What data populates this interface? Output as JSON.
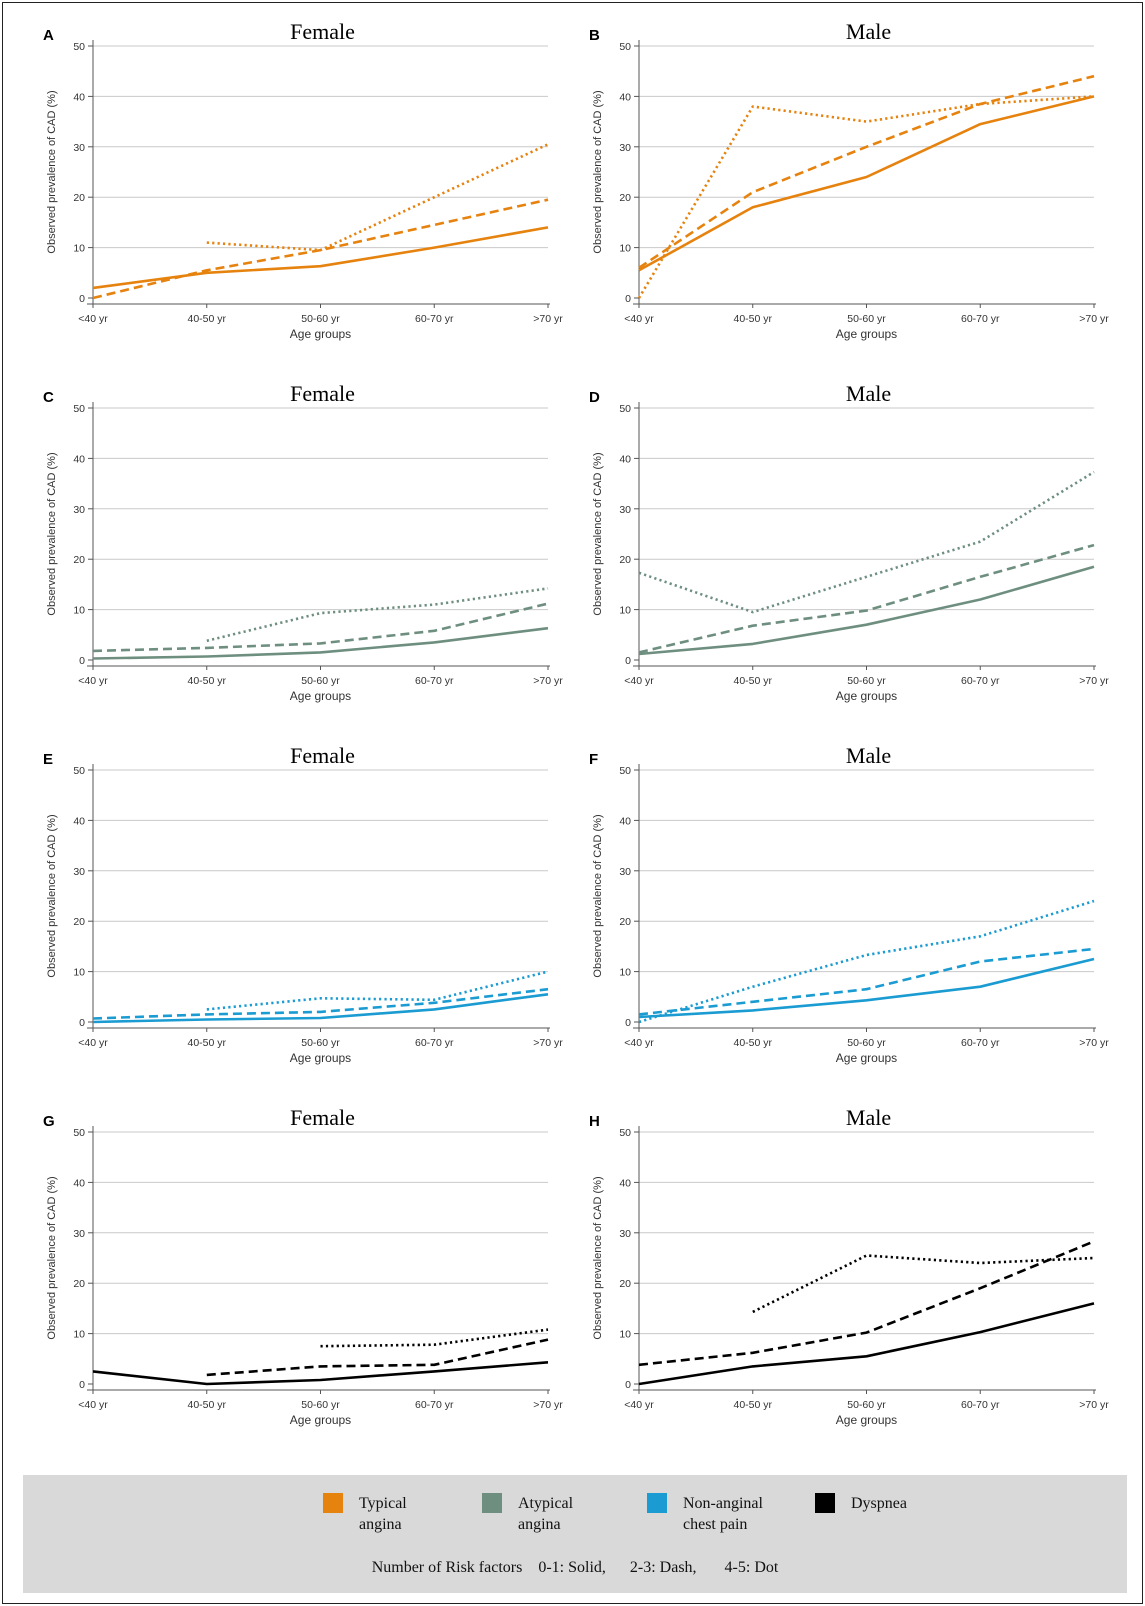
{
  "chart_data": [
    {
      "panel": "A",
      "title": "Female",
      "type": "line",
      "xlabel": "Age groups",
      "ylabel": "Observed prevalence of CAD (%)",
      "categories": [
        "<40 yr",
        "40-50 yr",
        "50-60 yr",
        "60-70 yr",
        ">70 yr"
      ],
      "yticks": [
        0,
        10,
        20,
        30,
        40,
        50
      ],
      "ylim": [
        0,
        50
      ],
      "color": "#E6820E",
      "series": [
        {
          "style": "solid",
          "values": [
            2,
            5,
            6.3,
            10,
            14
          ]
        },
        {
          "style": "dash",
          "values": [
            0,
            5.5,
            9.5,
            14.5,
            19.5
          ]
        },
        {
          "style": "dot",
          "values": [
            null,
            11,
            9.5,
            20,
            30.5
          ]
        }
      ]
    },
    {
      "panel": "B",
      "title": "Male",
      "type": "line",
      "xlabel": "Age groups",
      "ylabel": "Observed prevalence of CAD (%)",
      "categories": [
        "<40 yr",
        "40-50 yr",
        "50-60 yr",
        "60-70 yr",
        ">70 yr"
      ],
      "yticks": [
        0,
        10,
        20,
        30,
        40,
        50
      ],
      "ylim": [
        0,
        50
      ],
      "color": "#E6820E",
      "series": [
        {
          "style": "solid",
          "values": [
            5.5,
            18,
            24,
            34.5,
            40
          ]
        },
        {
          "style": "dash",
          "values": [
            6,
            21,
            30,
            38.5,
            44
          ]
        },
        {
          "style": "dot",
          "values": [
            0,
            38,
            35,
            38.5,
            40
          ]
        }
      ]
    },
    {
      "panel": "C",
      "title": "Female",
      "type": "line",
      "xlabel": "Age groups",
      "ylabel": "Observed prevalence of CAD (%)",
      "categories": [
        "<40 yr",
        "40-50 yr",
        "50-60 yr",
        "60-70 yr",
        ">70 yr"
      ],
      "yticks": [
        0,
        10,
        20,
        30,
        40,
        50
      ],
      "ylim": [
        0,
        50
      ],
      "color": "#6E8F80",
      "series": [
        {
          "style": "solid",
          "values": [
            0.3,
            0.7,
            1.5,
            3.5,
            6.3
          ]
        },
        {
          "style": "dash",
          "values": [
            1.8,
            2.4,
            3.3,
            5.8,
            11.2
          ]
        },
        {
          "style": "dot",
          "values": [
            null,
            3.8,
            9.3,
            11,
            14.2
          ]
        }
      ]
    },
    {
      "panel": "D",
      "title": "Male",
      "type": "line",
      "xlabel": "Age groups",
      "ylabel": "Observed prevalence of CAD (%)",
      "categories": [
        "<40 yr",
        "40-50 yr",
        "50-60 yr",
        "60-70 yr",
        ">70 yr"
      ],
      "yticks": [
        0,
        10,
        20,
        30,
        40,
        50
      ],
      "ylim": [
        0,
        50
      ],
      "color": "#6E8F80",
      "series": [
        {
          "style": "solid",
          "values": [
            1.2,
            3.2,
            7,
            12,
            18.5
          ]
        },
        {
          "style": "dash",
          "values": [
            1.5,
            6.8,
            9.8,
            16.5,
            22.8
          ]
        },
        {
          "style": "dot",
          "values": [
            17.3,
            9.5,
            16.5,
            23.5,
            37.3
          ]
        }
      ]
    },
    {
      "panel": "E",
      "title": "Female",
      "type": "line",
      "xlabel": "Age groups",
      "ylabel": "Observed prevalence of CAD (%)",
      "categories": [
        "<40 yr",
        "40-50 yr",
        "50-60 yr",
        "60-70 yr",
        ">70 yr"
      ],
      "yticks": [
        0,
        10,
        20,
        30,
        40,
        50
      ],
      "ylim": [
        0,
        50
      ],
      "color": "#1A9BD1",
      "series": [
        {
          "style": "solid",
          "values": [
            0,
            0.5,
            0.8,
            2.5,
            5.5
          ]
        },
        {
          "style": "dash",
          "values": [
            0.7,
            1.5,
            2,
            3.8,
            6.5
          ]
        },
        {
          "style": "dot",
          "values": [
            null,
            2.5,
            4.7,
            4.4,
            10
          ]
        }
      ]
    },
    {
      "panel": "F",
      "title": "Male",
      "type": "line",
      "xlabel": "Age groups",
      "ylabel": "Observed prevalence of CAD (%)",
      "categories": [
        "<40 yr",
        "40-50 yr",
        "50-60 yr",
        "60-70 yr",
        ">70 yr"
      ],
      "yticks": [
        0,
        10,
        20,
        30,
        40,
        50
      ],
      "ylim": [
        0,
        50
      ],
      "color": "#1A9BD1",
      "series": [
        {
          "style": "solid",
          "values": [
            1,
            2.3,
            4.3,
            7,
            12.5
          ]
        },
        {
          "style": "dash",
          "values": [
            1.5,
            4,
            6.5,
            12,
            14.5
          ]
        },
        {
          "style": "dot",
          "values": [
            0,
            7,
            13.3,
            17,
            24
          ]
        }
      ]
    },
    {
      "panel": "G",
      "title": "Female",
      "type": "line",
      "xlabel": "Age groups",
      "ylabel": "Observed prevalence of CAD (%)",
      "categories": [
        "<40 yr",
        "40-50 yr",
        "50-60 yr",
        "60-70 yr",
        ">70 yr"
      ],
      "yticks": [
        0,
        10,
        20,
        30,
        40,
        50
      ],
      "ylim": [
        0,
        50
      ],
      "color": "#000000",
      "series": [
        {
          "style": "solid",
          "values": [
            2.5,
            0,
            0.8,
            2.5,
            4.3
          ]
        },
        {
          "style": "dash",
          "values": [
            null,
            1.8,
            3.5,
            3.8,
            8.8
          ]
        },
        {
          "style": "dot",
          "values": [
            null,
            null,
            7.5,
            7.8,
            10.8
          ]
        }
      ]
    },
    {
      "panel": "H",
      "title": "Male",
      "type": "line",
      "xlabel": "Age groups",
      "ylabel": "Observed prevalence of CAD (%)",
      "categories": [
        "<40 yr",
        "40-50 yr",
        "50-60 yr",
        "60-70 yr",
        ">70 yr"
      ],
      "yticks": [
        0,
        10,
        20,
        30,
        40,
        50
      ],
      "ylim": [
        0,
        50
      ],
      "color": "#000000",
      "series": [
        {
          "style": "solid",
          "values": [
            0,
            3.5,
            5.5,
            10.3,
            16
          ]
        },
        {
          "style": "dash",
          "values": [
            3.8,
            6.2,
            10.2,
            19,
            28.3
          ]
        },
        {
          "style": "dot",
          "values": [
            null,
            14.3,
            25.5,
            24,
            25
          ]
        }
      ]
    }
  ],
  "legend": {
    "items": [
      {
        "label": "Typical\nangina",
        "color": "#E6820E"
      },
      {
        "label": "Atypical\nangina",
        "color": "#6E8F80"
      },
      {
        "label": "Non-anginal\nchest pain",
        "color": "#1A9BD1"
      },
      {
        "label": "Dyspnea",
        "color": "#000000"
      }
    ],
    "note": "Number of Risk factors    0-1: Solid,      2-3: Dash,       4-5: Dot"
  }
}
